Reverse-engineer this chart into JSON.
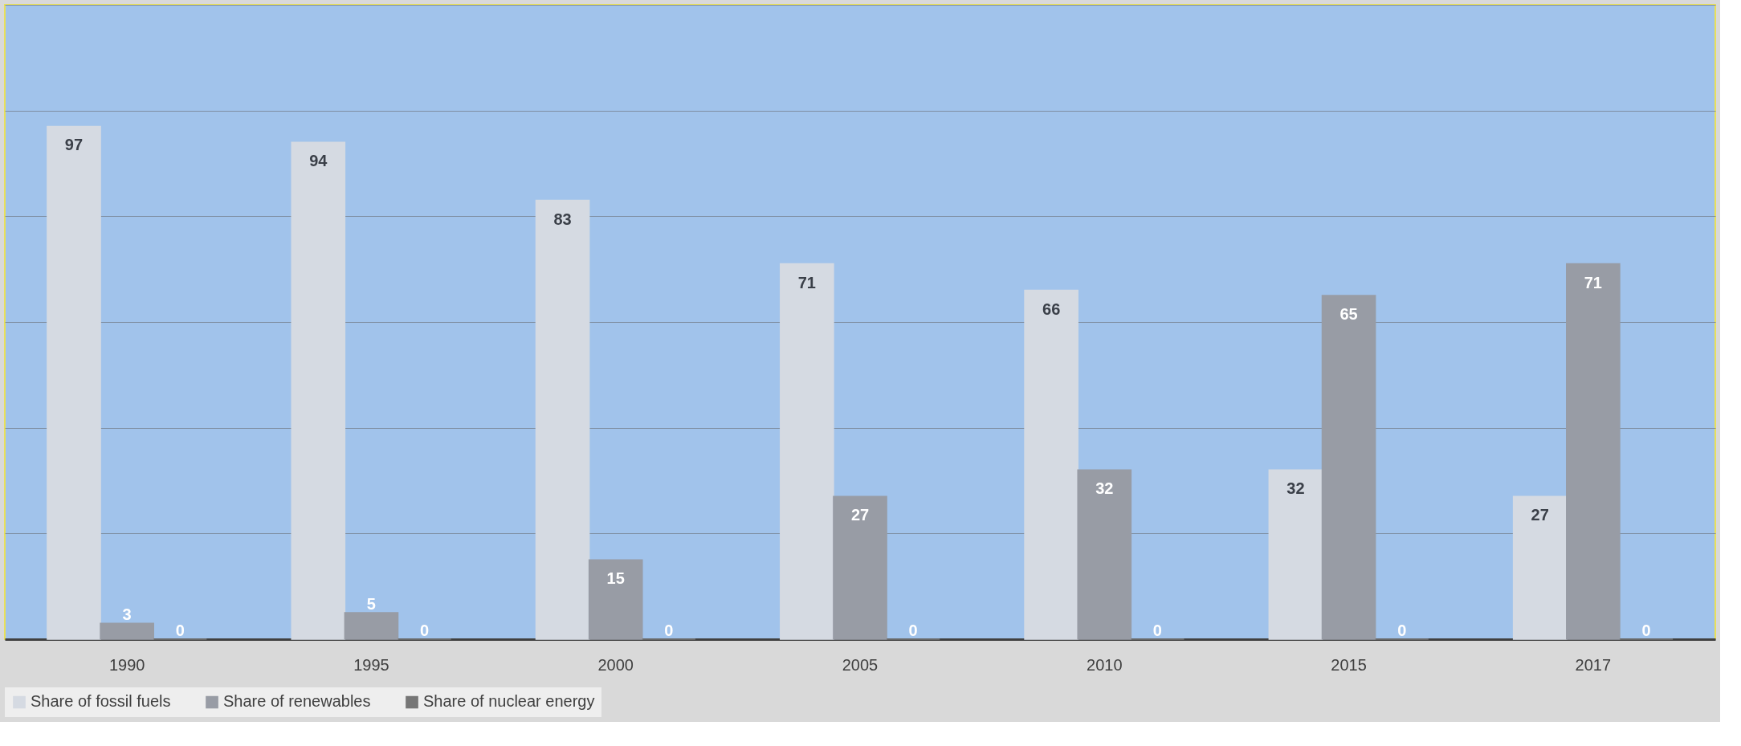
{
  "chart_data": {
    "type": "bar",
    "categories": [
      "1990",
      "1995",
      "2000",
      "2005",
      "2010",
      "2015",
      "2017"
    ],
    "series": [
      {
        "name": "Share of fossil fuels",
        "color": "#d5dae2",
        "values": [
          97,
          94,
          83,
          71,
          66,
          32,
          27
        ]
      },
      {
        "name": "Share of renewables",
        "color": "#989ca5",
        "values": [
          3,
          5,
          15,
          27,
          32,
          65,
          71
        ]
      },
      {
        "name": "Share of nuclear energy",
        "color": "#767676",
        "values": [
          0,
          0,
          0,
          0,
          0,
          0,
          0
        ]
      }
    ],
    "ylim": [
      0,
      120
    ],
    "yticks": [
      {
        "value": 0,
        "label": null
      },
      {
        "value": 20,
        "label": null
      },
      {
        "value": 40,
        "label": null
      },
      {
        "value": 60,
        "label": null
      },
      {
        "value": 80,
        "label": null
      },
      {
        "value": 100,
        "label": null
      },
      {
        "value": 120,
        "label": null
      }
    ],
    "tick_labels": "x",
    "grid": "y",
    "data_labels": true,
    "legend": "bottom"
  }
}
